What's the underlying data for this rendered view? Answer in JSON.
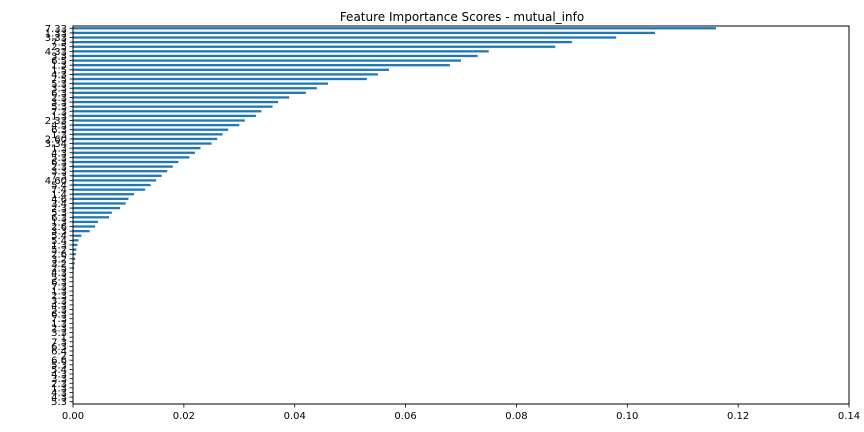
{
  "chart_data": {
    "type": "bar",
    "orientation": "horizontal",
    "title": "Feature Importance Scores - mutual_info",
    "xlabel": "",
    "ylabel": "",
    "xlim": [
      0,
      0.14
    ],
    "xticks": [
      "0.00",
      "0.02",
      "0.04",
      "0.06",
      "0.08",
      "0.10",
      "0.12",
      "0.14"
    ],
    "grid": false,
    "legend": "none",
    "bar_color": "#1f77b4",
    "categories": [
      "7.33",
      "1.33",
      "3.33",
      "7.3",
      "2.5",
      "4.33",
      "3.3",
      "6.5",
      "1.3",
      "1.5",
      "4.3",
      "7.5",
      "5.3",
      "3.3",
      "6.3",
      "2.3",
      "3.3",
      "5.3",
      "7.3",
      "1.3",
      "2.33",
      "4.5",
      "6.3",
      "1.3",
      "2.60",
      "3.34",
      "1.3",
      "4.3",
      "5.3",
      "6.3",
      "2.3",
      "3.3",
      "7.3",
      "4.60",
      "5.4",
      "7.4",
      "1.4",
      "4.6",
      "3.4",
      "2.3",
      "5.3",
      "6.3",
      "1.3",
      "2.6",
      "3.3",
      "5.4",
      "5.4",
      "1.3",
      "5.2",
      "2.6",
      "3.2",
      "3.2",
      "2.5",
      "4.3",
      "5.3",
      "6.3",
      "7.3",
      "1.3",
      "2.3",
      "3.3",
      "4.3",
      "5.3",
      "6.3",
      "7.3",
      "1.3",
      "2.3",
      "3.3",
      "1",
      "7.3",
      "6.3",
      "6.4",
      "2",
      "6.6",
      "5.3",
      "5.4",
      "4.3",
      "3.3",
      "2.3",
      "1.3",
      "4.3",
      "4.3",
      "5.3"
    ],
    "values": [
      0.116,
      0.105,
      0.098,
      0.09,
      0.087,
      0.075,
      0.073,
      0.07,
      0.068,
      0.057,
      0.055,
      0.053,
      0.046,
      0.044,
      0.042,
      0.039,
      0.037,
      0.036,
      0.034,
      0.033,
      0.031,
      0.03,
      0.028,
      0.027,
      0.026,
      0.025,
      0.023,
      0.022,
      0.021,
      0.019,
      0.018,
      0.017,
      0.016,
      0.015,
      0.014,
      0.013,
      0.011,
      0.01,
      0.0095,
      0.0085,
      0.007,
      0.0065,
      0.0045,
      0.004,
      0.003,
      0.0015,
      0.001,
      0.0008,
      0.0006,
      0.0005,
      0.0004,
      0.0003,
      0.0002,
      0.0001,
      0,
      0,
      0,
      0,
      0,
      0,
      0,
      0,
      0,
      0,
      0,
      0,
      0,
      0,
      0,
      0,
      0,
      0,
      0,
      0,
      0,
      0,
      0,
      0,
      0,
      0,
      0,
      0
    ]
  }
}
